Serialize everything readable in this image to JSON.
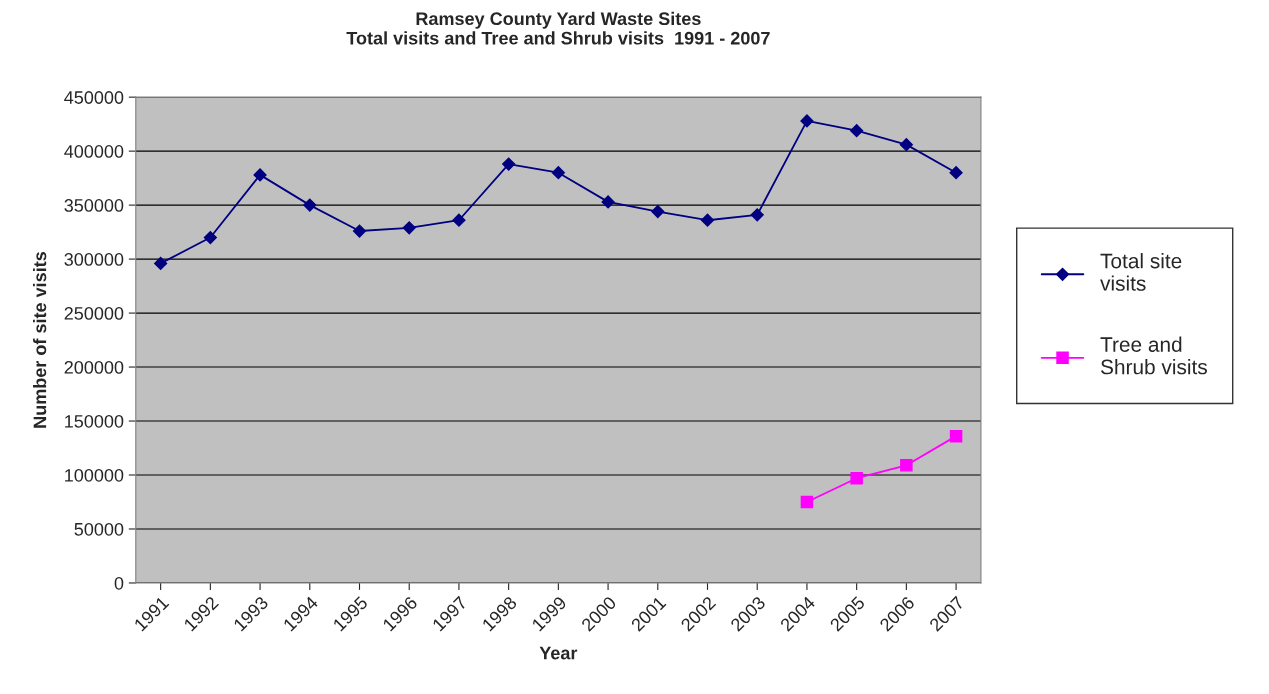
{
  "chart_data": {
    "type": "line",
    "title": "Ramsey County Yard Waste Sites\nTotal visits and Tree and Shrub visits  1991 - 2007",
    "xlabel": "Year",
    "ylabel": "Number of site visits",
    "categories": [
      "1991",
      "1992",
      "1993",
      "1994",
      "1995",
      "1996",
      "1997",
      "1998",
      "1999",
      "2000",
      "2001",
      "2002",
      "2003",
      "2004",
      "2005",
      "2006",
      "2007"
    ],
    "series": [
      {
        "name": "Total site visits",
        "color": "#000080",
        "marker": "diamond",
        "values": [
          296000,
          320000,
          378000,
          350000,
          326000,
          329000,
          336000,
          388000,
          380000,
          353000,
          344000,
          336000,
          341000,
          428000,
          419000,
          406000,
          380000
        ]
      },
      {
        "name": "Tree and Shrub visits",
        "color": "#ff00ff",
        "marker": "square",
        "values": [
          null,
          null,
          null,
          null,
          null,
          null,
          null,
          null,
          null,
          null,
          null,
          null,
          null,
          75000,
          97000,
          109000,
          136000
        ]
      }
    ],
    "ylim": [
      0,
      450000
    ],
    "yticks": [
      0,
      50000,
      100000,
      150000,
      200000,
      250000,
      300000,
      350000,
      400000,
      450000
    ],
    "grid": "y",
    "legend": "right"
  }
}
